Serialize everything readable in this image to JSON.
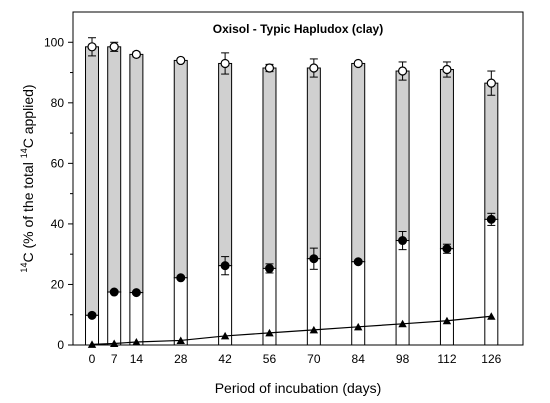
{
  "chart_data": {
    "type": "bar",
    "title": "Oxisol - Typic Hapludox (clay)",
    "xlabel": "Period of incubation (days)",
    "ylabel_prefix": "14",
    "ylabel_mid": "C (% of the total ",
    "ylabel_sup2": "14",
    "ylabel_suffix": "C applied)",
    "x": [
      0,
      7,
      14,
      28,
      42,
      56,
      70,
      84,
      98,
      112,
      126
    ],
    "x_tick_labels": [
      "0",
      "7",
      "14",
      "28",
      "42",
      "56",
      "70",
      "84",
      "98",
      "112",
      "126"
    ],
    "xlim": [
      -6,
      136
    ],
    "ylim": [
      0,
      110
    ],
    "y_ticks": [
      0,
      20,
      40,
      60,
      80,
      100
    ],
    "y_tick_labels": [
      "0",
      "20",
      "40",
      "60",
      "80",
      "100"
    ],
    "grid": false,
    "series": [
      {
        "marker": "open-circle",
        "fill": "#d0d0d0",
        "values": [
          98.5,
          98.5,
          96,
          94,
          93,
          91.5,
          91.5,
          93,
          90.5,
          91,
          86.5
        ],
        "errors": [
          3,
          1.5,
          0.8,
          0.5,
          3.5,
          1.2,
          3,
          0.5,
          3,
          2.5,
          4
        ]
      },
      {
        "marker": "filled-circle",
        "fill": "#ffffff",
        "values": [
          9.8,
          17.5,
          17.3,
          22.2,
          26.2,
          25.3,
          28.5,
          27.5,
          34.5,
          31.8,
          41.5
        ],
        "errors": [
          0.5,
          0.4,
          0.4,
          0.5,
          3,
          1.5,
          3.5,
          0.5,
          3,
          1.5,
          2
        ]
      },
      {
        "marker": "filled-triangle",
        "line": true,
        "values": [
          0.2,
          0.5,
          1,
          1.5,
          3,
          4,
          5,
          6,
          7,
          8,
          9.5
        ]
      }
    ]
  }
}
